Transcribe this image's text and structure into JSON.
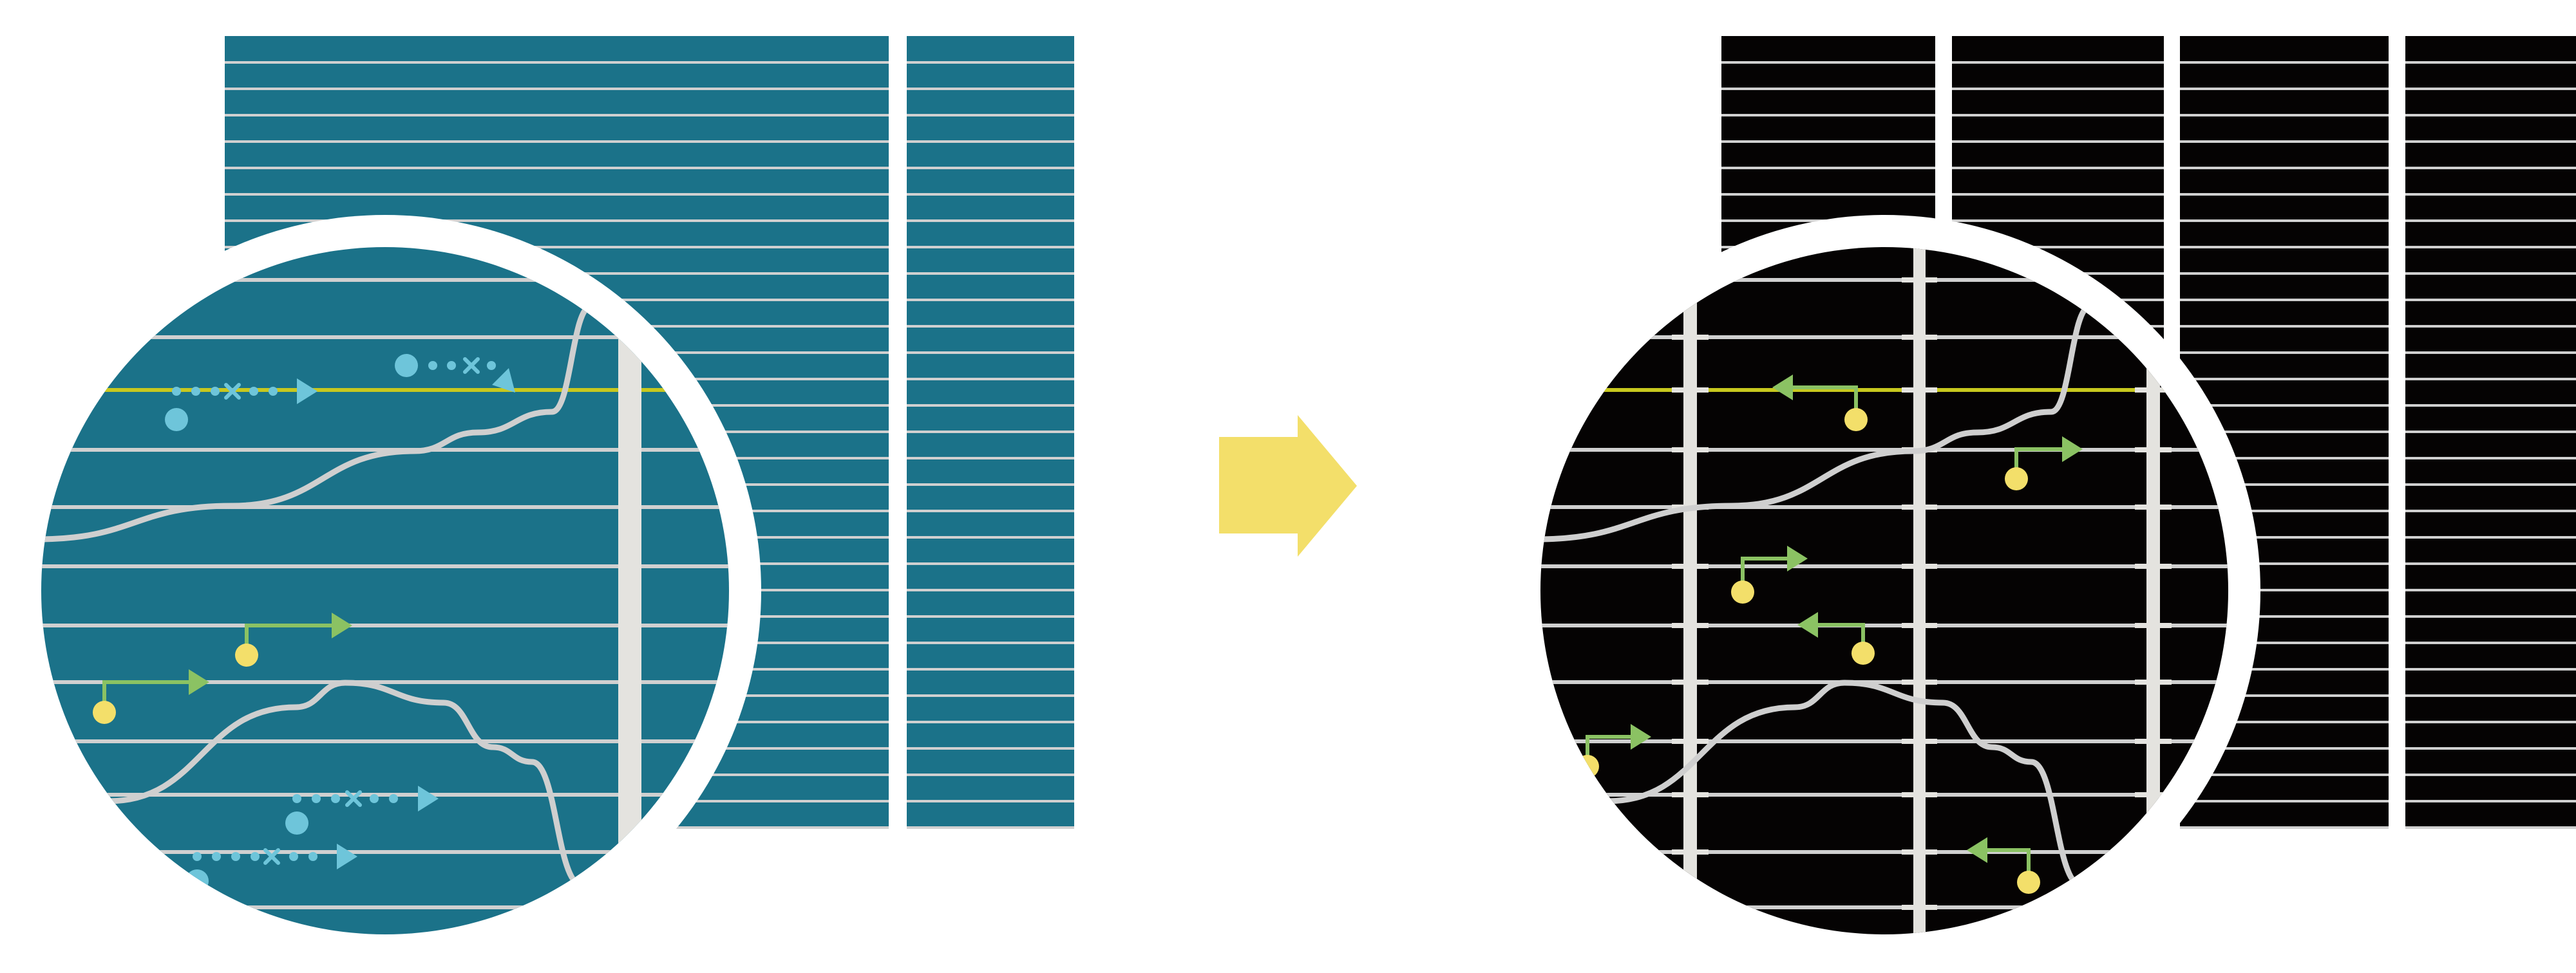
{
  "colors": {
    "before_background": "#1b7289",
    "after_background": "#050303",
    "grid_line": "#d0d0d0",
    "divider_bar": "#e4e3df",
    "transition_arrow": "#f3df6a",
    "node": "#f3df6a",
    "green_arrow": "#8bc263",
    "blue_marker": "#6ec5da",
    "highlight_line": "#c8c81e",
    "curve": "#cfcfcf"
  },
  "icons": {
    "transition": "right-arrow-icon",
    "magnifier": "magnifier-circle-icon"
  }
}
